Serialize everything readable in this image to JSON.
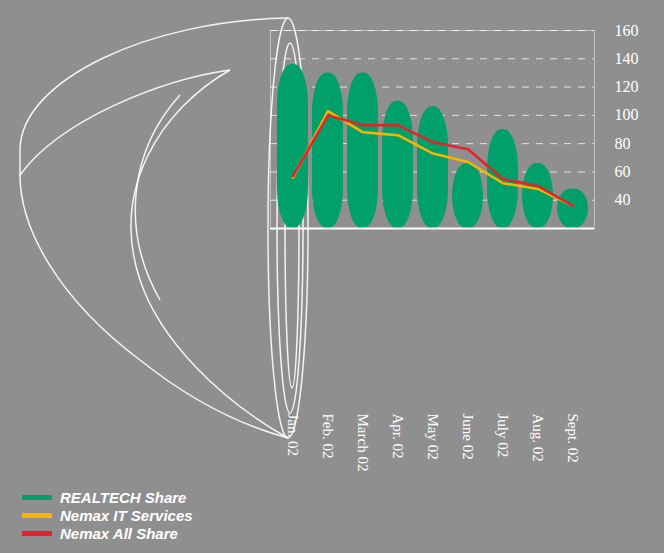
{
  "chart_data": {
    "type": "bar",
    "categories": [
      "Jan. 02",
      "Feb. 02",
      "March 02",
      "Apr. 02",
      "May 02",
      "June 02",
      "July 02",
      "Aug. 02",
      "Sept. 02"
    ],
    "series": [
      {
        "name": "REALTECH Share",
        "type": "bar",
        "color": "#00a06a",
        "values": [
          136,
          130,
          130,
          110,
          106,
          66,
          90,
          66,
          48
        ]
      },
      {
        "name": "Nemax IT Services",
        "type": "line",
        "color": "#f7b500",
        "values": [
          56,
          103,
          88,
          86,
          73,
          67,
          52,
          48,
          36
        ]
      },
      {
        "name": "Nemax All Share",
        "type": "line",
        "color": "#e2232a",
        "values": [
          57,
          100,
          93,
          93,
          81,
          76,
          55,
          50,
          36
        ]
      }
    ],
    "ylim": [
      20,
      160
    ],
    "yticks": [
      40,
      60,
      80,
      100,
      120,
      140,
      160
    ],
    "grid": true,
    "legend": "bottom-left"
  }
}
